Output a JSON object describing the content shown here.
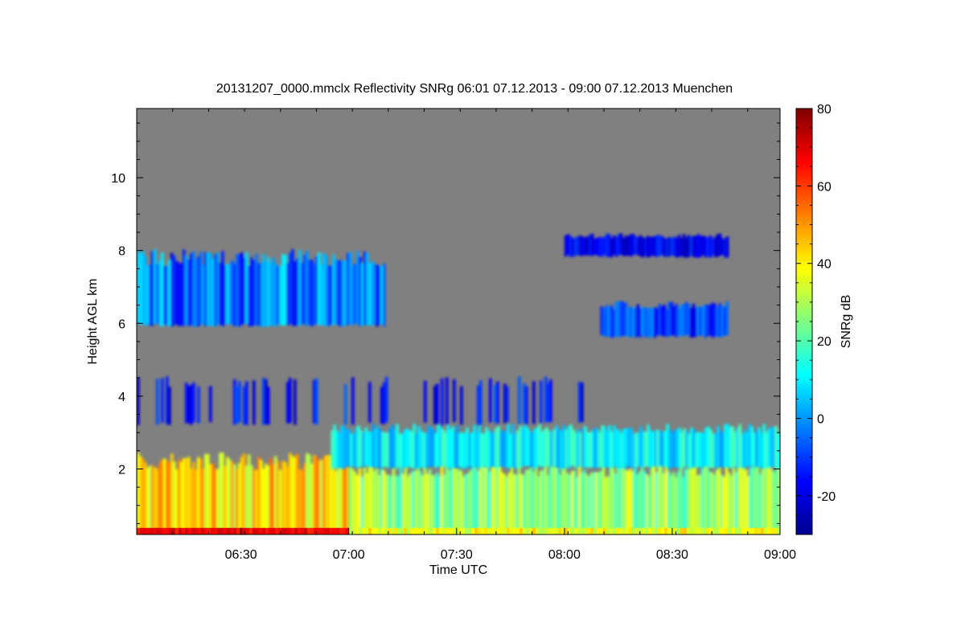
{
  "chart_data": {
    "type": "heatmap",
    "title": "20131207_0000.mmclx Reflectivity SNRg   06:01 07.12.2013 - 09:00 07.12.2013 Muenchen",
    "xlabel": "Time UTC",
    "ylabel": "Height AGL km",
    "colorbar_label": "SNRg dB",
    "x_range_utc": [
      "06:01",
      "09:00"
    ],
    "ylim": [
      0.2,
      11.9
    ],
    "x_ticks": [
      "06:30",
      "07:00",
      "07:30",
      "08:00",
      "08:30",
      "09:00"
    ],
    "y_ticks": [
      "2",
      "4",
      "6",
      "8",
      "10"
    ],
    "color_scale": {
      "min": -30,
      "max": 80,
      "ticks": [
        "-20",
        "0",
        "20",
        "40",
        "60",
        "80"
      ],
      "colormap": "jet",
      "no_signal_color": "#808080"
    },
    "features": [
      {
        "name": "boundary layer echo",
        "from": "06:01",
        "to": "07:00",
        "height_km": [
          0.2,
          2.2
        ],
        "snr_db": [
          30,
          55
        ]
      },
      {
        "name": "boundary layer echo",
        "from": "07:00",
        "to": "09:00",
        "height_km": [
          0.2,
          2.0
        ],
        "snr_db": [
          15,
          40
        ]
      },
      {
        "name": "low cloud layer",
        "from": "06:55",
        "to": "09:00",
        "height_km": [
          2.0,
          3.1
        ],
        "snr_db": [
          0,
          20
        ]
      },
      {
        "name": "mid-level cloud",
        "from": "06:01",
        "to": "07:10",
        "height_km": [
          5.9,
          7.8
        ],
        "snr_db": [
          -20,
          10
        ]
      },
      {
        "name": "mid-level cloud",
        "from": "08:10",
        "to": "08:45",
        "height_km": [
          5.6,
          6.5
        ],
        "snr_db": [
          -20,
          0
        ]
      },
      {
        "name": "upper cloud",
        "from": "08:00",
        "to": "08:45",
        "height_km": [
          7.8,
          8.4
        ],
        "snr_db": [
          -25,
          -10
        ]
      },
      {
        "name": "scattered echoes",
        "from": "06:01",
        "to": "08:05",
        "height_km": [
          3.2,
          4.4
        ],
        "snr_db": [
          -25,
          -5
        ]
      }
    ]
  }
}
